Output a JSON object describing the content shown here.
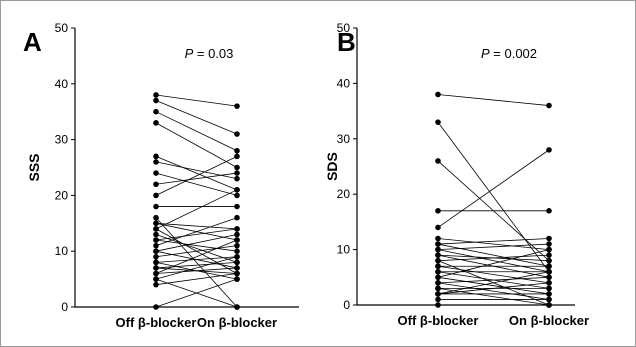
{
  "figure": {
    "chart_data": [
      {
        "type": "line",
        "panel": "A",
        "ylabel": "SSS",
        "annotation_p": "P",
        "annotation_value": " = 0.03",
        "categories": [
          "Off β-blocker",
          "On β-blocker"
        ],
        "ylim": [
          0,
          50
        ],
        "yticks": [
          0,
          10,
          20,
          30,
          40,
          50
        ],
        "pairs": [
          [
            38,
            36
          ],
          [
            37,
            31
          ],
          [
            35,
            28
          ],
          [
            33,
            25
          ],
          [
            27,
            21
          ],
          [
            26,
            23
          ],
          [
            24,
            20
          ],
          [
            22,
            24
          ],
          [
            20,
            27
          ],
          [
            18,
            18
          ],
          [
            16,
            0
          ],
          [
            15,
            14
          ],
          [
            15,
            12
          ],
          [
            14,
            21
          ],
          [
            14,
            6
          ],
          [
            13,
            8
          ],
          [
            12,
            14
          ],
          [
            12,
            10
          ],
          [
            11,
            16
          ],
          [
            10,
            13
          ],
          [
            10,
            7
          ],
          [
            9,
            11
          ],
          [
            8,
            9
          ],
          [
            8,
            5
          ],
          [
            7,
            8
          ],
          [
            7,
            6
          ],
          [
            6,
            12
          ],
          [
            6,
            7
          ],
          [
            5,
            9
          ],
          [
            5,
            0
          ],
          [
            4,
            6
          ],
          [
            0,
            5
          ]
        ]
      },
      {
        "type": "line",
        "panel": "B",
        "ylabel": "SDS",
        "annotation_p": "P",
        "annotation_value": " = 0.002",
        "categories": [
          "Off β-blocker",
          "On β-blocker"
        ],
        "ylim": [
          0,
          50
        ],
        "yticks": [
          0,
          10,
          20,
          30,
          40,
          50
        ],
        "pairs": [
          [
            38,
            36
          ],
          [
            33,
            6
          ],
          [
            26,
            8
          ],
          [
            17,
            17
          ],
          [
            14,
            28
          ],
          [
            12,
            10
          ],
          [
            11,
            12
          ],
          [
            11,
            7
          ],
          [
            10,
            11
          ],
          [
            10,
            6
          ],
          [
            9,
            5
          ],
          [
            9,
            8
          ],
          [
            8,
            0
          ],
          [
            8,
            9
          ],
          [
            7,
            7
          ],
          [
            7,
            4
          ],
          [
            6,
            6
          ],
          [
            6,
            3
          ],
          [
            5,
            10
          ],
          [
            5,
            2
          ],
          [
            4,
            5
          ],
          [
            4,
            1
          ],
          [
            3,
            3
          ],
          [
            3,
            0
          ],
          [
            2,
            4
          ],
          [
            2,
            2
          ],
          [
            2,
            6
          ],
          [
            1,
            1
          ],
          [
            0,
            0
          ]
        ]
      }
    ]
  }
}
